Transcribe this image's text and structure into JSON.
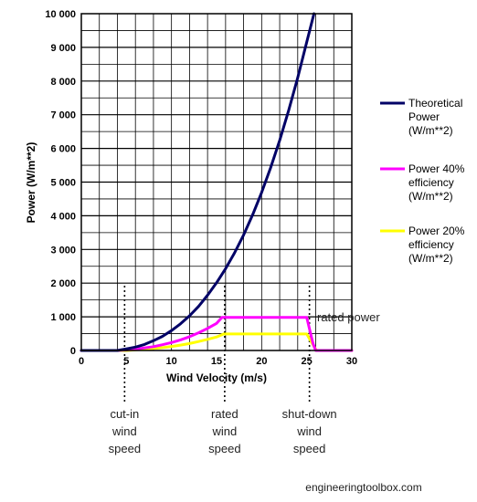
{
  "chart_data": {
    "type": "line",
    "xlabel": "Wind Velocity (m/s)",
    "ylabel": "Power (W/m**2)",
    "xlim": [
      0,
      30
    ],
    "ylim": [
      0,
      10000
    ],
    "x_ticks": [
      "0",
      "5",
      "10",
      "15",
      "20",
      "25",
      "30"
    ],
    "y_ticks": [
      "0",
      "1 000",
      "2 000",
      "3 000",
      "4 000",
      "5 000",
      "6 000",
      "7 000",
      "8 000",
      "9 000",
      "10 000"
    ],
    "grid": true,
    "legend_position": "right",
    "series": [
      {
        "name": "Theoretical Power (W/m**2)",
        "color": "#000066",
        "x": [
          0,
          4,
          5,
          6,
          7,
          8,
          9,
          10,
          11,
          12,
          13,
          14,
          15,
          16,
          17,
          18,
          19,
          20,
          21,
          22,
          23,
          24,
          25,
          25.8
        ],
        "y": [
          0,
          0,
          50,
          100,
          180,
          290,
          420,
          590,
          790,
          1030,
          1310,
          1640,
          2010,
          2430,
          2900,
          3430,
          4030,
          4690,
          5430,
          6240,
          7130,
          8100,
          9160,
          10000
        ]
      },
      {
        "name": "Power 40% efficiency (W/m**2)",
        "color": "#ff00ff",
        "x": [
          0,
          4,
          5,
          6,
          7,
          8,
          9,
          10,
          11,
          12,
          13,
          14,
          15,
          15.6,
          25,
          25.3,
          25.7,
          26,
          30
        ],
        "y": [
          0,
          0,
          20,
          40,
          75,
          115,
          170,
          235,
          315,
          410,
          525,
          655,
          805,
          980,
          980,
          650,
          200,
          0,
          0
        ]
      },
      {
        "name": "Power 20% efficiency (W/m**2)",
        "color": "#ffff00",
        "x": [
          0,
          5,
          6,
          7,
          8,
          9,
          10,
          11,
          12,
          13,
          14,
          15,
          15.8,
          25,
          25.4,
          25.9,
          26.1,
          30
        ],
        "y": [
          0,
          0,
          20,
          37,
          60,
          85,
          120,
          160,
          205,
          265,
          330,
          400,
          490,
          490,
          300,
          80,
          0,
          0
        ]
      }
    ],
    "markers": [
      {
        "x": 4.8,
        "label": [
          "cut-in",
          "wind",
          "speed"
        ]
      },
      {
        "x": 15.9,
        "label": [
          "rated",
          "wind",
          "speed"
        ]
      },
      {
        "x": 25.3,
        "label": [
          "shut-down",
          "wind",
          "speed"
        ]
      }
    ],
    "annotation": "rated power",
    "credit": "engineeringtoolbox.com"
  }
}
